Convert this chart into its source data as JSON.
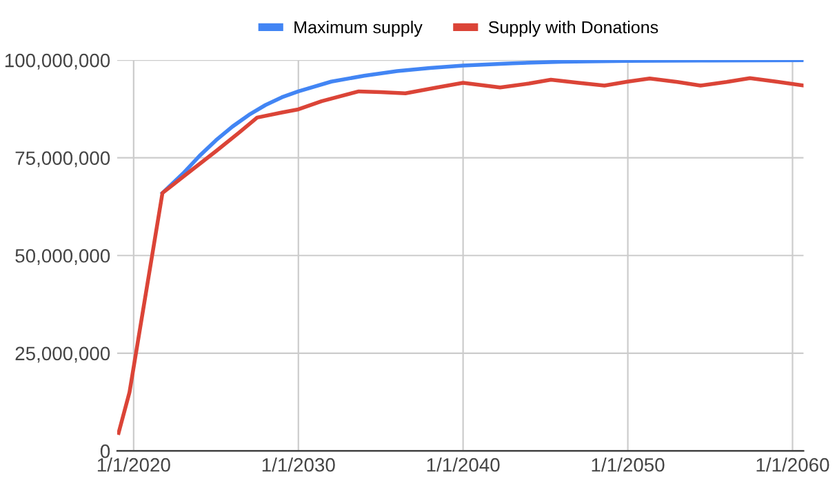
{
  "chart_data": {
    "type": "line",
    "series": [
      {
        "name": "Maximum supply",
        "color": "#4285f4",
        "x": [
          "2021-10",
          "2023-01",
          "2024-01",
          "2025-01",
          "2026-01",
          "2027-01",
          "2028-01",
          "2029-01",
          "2030-01",
          "2032-01",
          "2034-01",
          "2036-01",
          "2038-01",
          "2040-01",
          "2043-01",
          "2046-01",
          "2050-01",
          "2055-01",
          "2060-09"
        ],
        "values": [
          66000000,
          71000000,
          75500000,
          79500000,
          83000000,
          86000000,
          88500000,
          90500000,
          92000000,
          94500000,
          96000000,
          97200000,
          98000000,
          98600000,
          99200000,
          99600000,
          99800000,
          99900000,
          100000000
        ]
      },
      {
        "name": "Supply with Donations",
        "color": "#db4437",
        "x": [
          "2019-02",
          "2019-10",
          "2021-10",
          "2023-06",
          "2025-01",
          "2026-06",
          "2027-07",
          "2029-01",
          "2030-01",
          "2031-06",
          "2033-09",
          "2035-01",
          "2036-07",
          "2038-06",
          "2040-01",
          "2042-04",
          "2044-01",
          "2045-05",
          "2047-01",
          "2048-08",
          "2050-01",
          "2051-05",
          "2053-01",
          "2054-06",
          "2056-01",
          "2057-06",
          "2059-01",
          "2060-09"
        ],
        "values": [
          4600000,
          15000000,
          66000000,
          71500000,
          76700000,
          81500000,
          85300000,
          86600000,
          87400000,
          89500000,
          92000000,
          91800000,
          91500000,
          93000000,
          94200000,
          93000000,
          94000000,
          95000000,
          94200000,
          93500000,
          94500000,
          95300000,
          94400000,
          93500000,
          94400000,
          95400000,
          94500000,
          93500000
        ]
      }
    ],
    "xlim": [
      "2019-01",
      "2060-09"
    ],
    "xticks": [
      {
        "value": "2020-01-01",
        "label": "1/1/2020"
      },
      {
        "value": "2030-01-01",
        "label": "1/1/2030"
      },
      {
        "value": "2040-01-01",
        "label": "1/1/2040"
      },
      {
        "value": "2050-01-01",
        "label": "1/1/2050"
      },
      {
        "value": "2060-01-01",
        "label": "1/1/2060"
      }
    ],
    "ylim": [
      0,
      100000000
    ],
    "yticks": [
      0,
      {
        "value": 25000000,
        "label": "25,000,000"
      },
      {
        "value": 50000000,
        "label": "50,000,000"
      },
      {
        "value": 75000000,
        "label": "75,000,000"
      },
      {
        "value": 100000000,
        "label": "100,000,000"
      }
    ],
    "grid": true,
    "legend": "top",
    "marker": "none",
    "line_style": "solid"
  }
}
